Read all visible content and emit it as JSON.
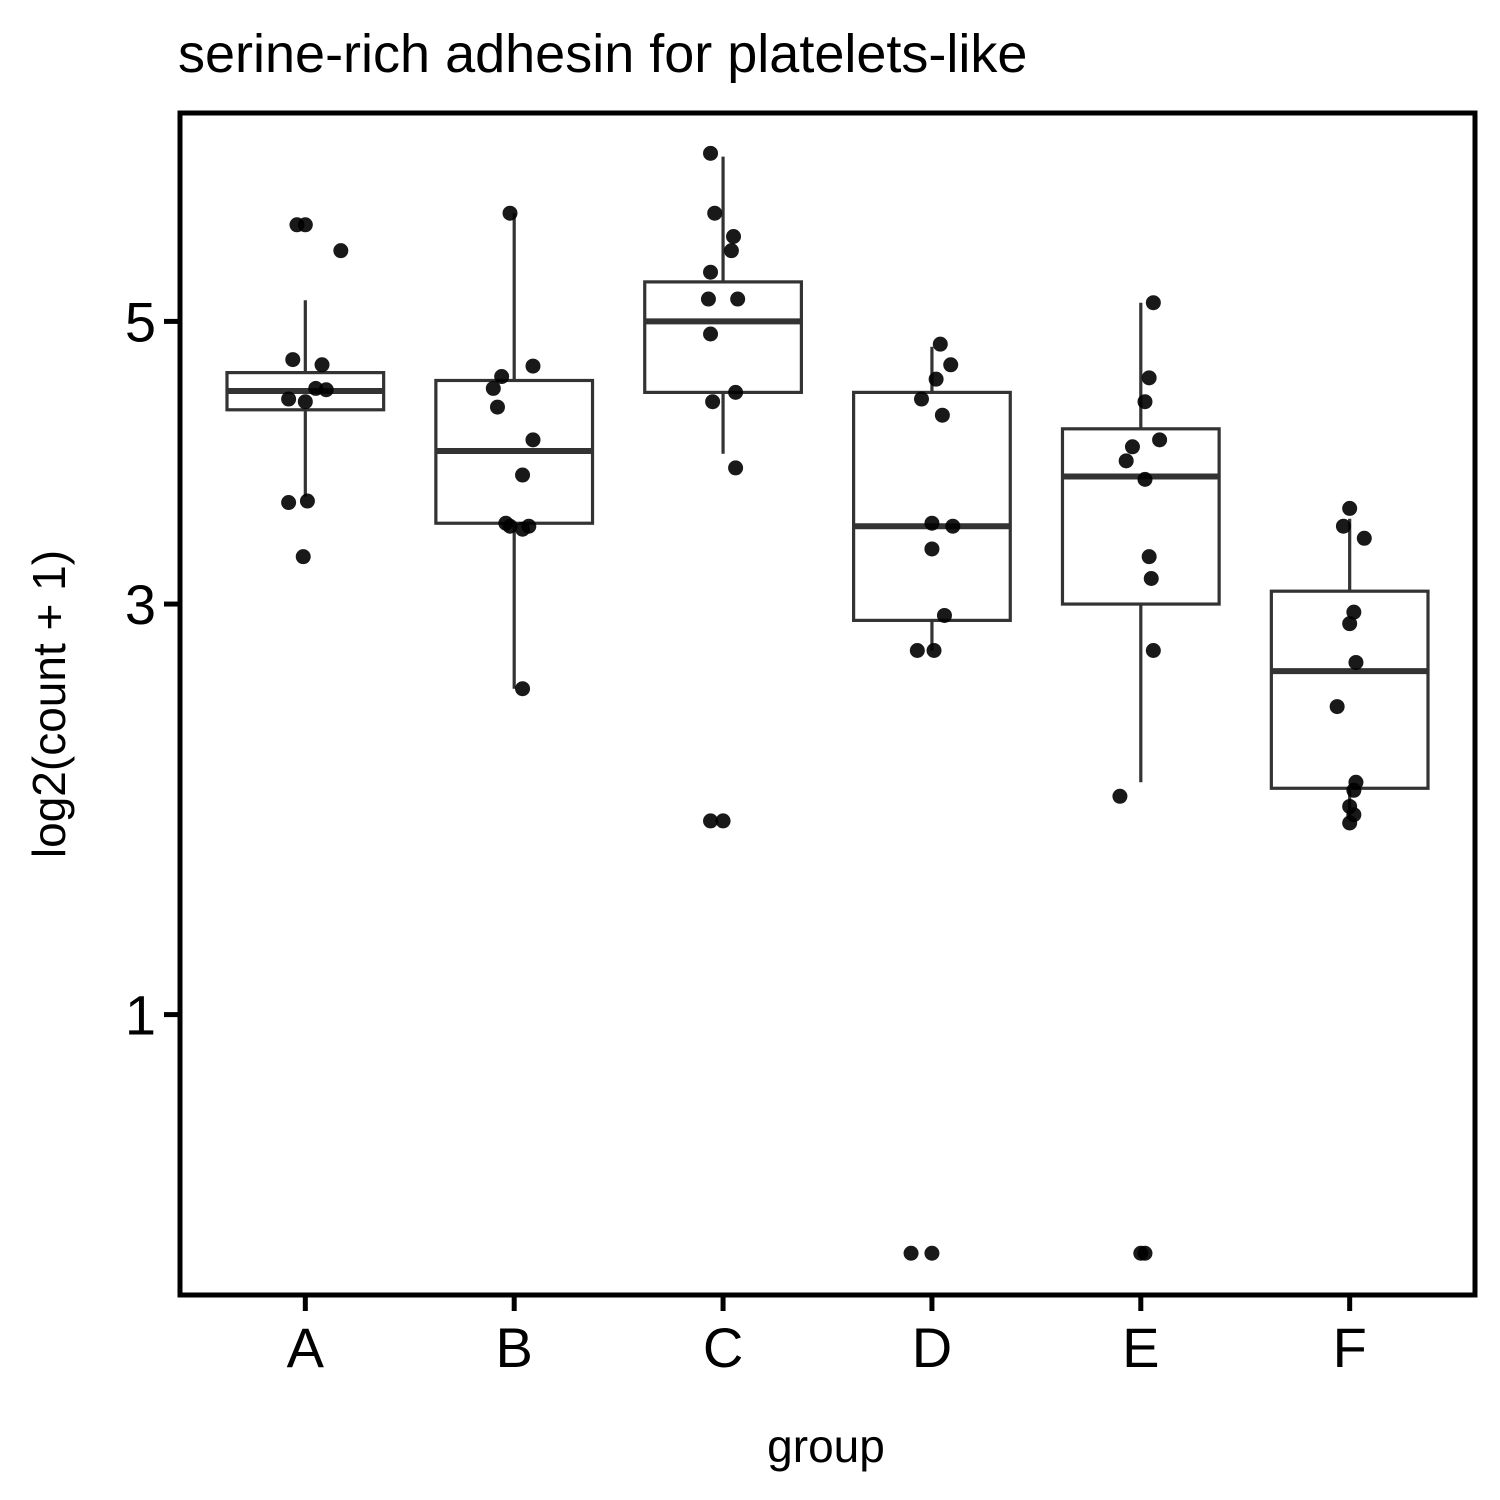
{
  "chart_data": {
    "type": "box",
    "title": "serine-rich adhesin for platelets-like",
    "xlabel": "group",
    "ylabel": "log2(count + 1)",
    "y_scale": "sqrt",
    "y_ticks": [
      1,
      3,
      5
    ],
    "ylim": [
      0.25,
      6.8
    ],
    "grid": false,
    "categories": [
      "A",
      "B",
      "C",
      "D",
      "E",
      "F"
    ],
    "boxes": [
      {
        "name": "A",
        "whisker_low": 3.7,
        "q1": 4.32,
        "median": 4.46,
        "q3": 4.6,
        "whisker_high": 5.17
      },
      {
        "name": "B",
        "whisker_low": 2.5,
        "q1": 3.52,
        "median": 4.02,
        "q3": 4.54,
        "whisker_high": 5.9
      },
      {
        "name": "C",
        "whisker_low": 4.0,
        "q1": 4.45,
        "median": 5.0,
        "q3": 5.32,
        "whisker_high": 6.4
      },
      {
        "name": "D",
        "whisker_low": 2.72,
        "q1": 2.9,
        "median": 3.5,
        "q3": 4.45,
        "whisker_high": 4.8
      },
      {
        "name": "E",
        "whisker_low": 2.0,
        "q1": 3.0,
        "median": 3.84,
        "q3": 4.18,
        "whisker_high": 5.15
      },
      {
        "name": "F",
        "whisker_low": 1.82,
        "q1": 1.97,
        "median": 2.6,
        "q3": 3.08,
        "whisker_high": 3.55
      }
    ],
    "points": [
      {
        "group": "A",
        "jitter": 0.0,
        "value": 5.8
      },
      {
        "group": "A",
        "jitter": -0.04,
        "value": 5.8
      },
      {
        "group": "A",
        "jitter": 0.17,
        "value": 5.58
      },
      {
        "group": "A",
        "jitter": -0.06,
        "value": 4.7
      },
      {
        "group": "A",
        "jitter": 0.08,
        "value": 4.66
      },
      {
        "group": "A",
        "jitter": 0.05,
        "value": 4.48
      },
      {
        "group": "A",
        "jitter": 0.1,
        "value": 4.47
      },
      {
        "group": "A",
        "jitter": -0.08,
        "value": 4.4
      },
      {
        "group": "A",
        "jitter": 0.0,
        "value": 4.38
      },
      {
        "group": "A",
        "jitter": -0.08,
        "value": 3.66
      },
      {
        "group": "A",
        "jitter": 0.01,
        "value": 3.67
      },
      {
        "group": "A",
        "jitter": -0.01,
        "value": 3.3
      },
      {
        "group": "B",
        "jitter": -0.02,
        "value": 5.9
      },
      {
        "group": "B",
        "jitter": 0.09,
        "value": 4.65
      },
      {
        "group": "B",
        "jitter": -0.06,
        "value": 4.57
      },
      {
        "group": "B",
        "jitter": -0.1,
        "value": 4.48
      },
      {
        "group": "B",
        "jitter": -0.08,
        "value": 4.34
      },
      {
        "group": "B",
        "jitter": 0.09,
        "value": 4.1
      },
      {
        "group": "B",
        "jitter": 0.04,
        "value": 3.85
      },
      {
        "group": "B",
        "jitter": -0.04,
        "value": 3.52
      },
      {
        "group": "B",
        "jitter": -0.02,
        "value": 3.5
      },
      {
        "group": "B",
        "jitter": 0.07,
        "value": 3.5
      },
      {
        "group": "B",
        "jitter": 0.04,
        "value": 3.48
      },
      {
        "group": "B",
        "jitter": 0.04,
        "value": 2.5
      },
      {
        "group": "C",
        "jitter": -0.06,
        "value": 6.43
      },
      {
        "group": "C",
        "jitter": -0.04,
        "value": 5.9
      },
      {
        "group": "C",
        "jitter": 0.05,
        "value": 5.7
      },
      {
        "group": "C",
        "jitter": 0.04,
        "value": 5.58
      },
      {
        "group": "C",
        "jitter": -0.06,
        "value": 5.4
      },
      {
        "group": "C",
        "jitter": -0.07,
        "value": 5.18
      },
      {
        "group": "C",
        "jitter": 0.07,
        "value": 5.18
      },
      {
        "group": "C",
        "jitter": -0.06,
        "value": 4.9
      },
      {
        "group": "C",
        "jitter": 0.06,
        "value": 4.45
      },
      {
        "group": "C",
        "jitter": -0.05,
        "value": 4.38
      },
      {
        "group": "C",
        "jitter": 0.06,
        "value": 3.9
      },
      {
        "group": "C",
        "jitter": -0.06,
        "value": 1.81
      },
      {
        "group": "C",
        "jitter": 0.0,
        "value": 1.81
      },
      {
        "group": "D",
        "jitter": 0.04,
        "value": 4.82
      },
      {
        "group": "D",
        "jitter": 0.09,
        "value": 4.66
      },
      {
        "group": "D",
        "jitter": 0.02,
        "value": 4.55
      },
      {
        "group": "D",
        "jitter": -0.05,
        "value": 4.4
      },
      {
        "group": "D",
        "jitter": 0.05,
        "value": 4.28
      },
      {
        "group": "D",
        "jitter": 0.0,
        "value": 3.52
      },
      {
        "group": "D",
        "jitter": 0.1,
        "value": 3.5
      },
      {
        "group": "D",
        "jitter": 0.0,
        "value": 3.35
      },
      {
        "group": "D",
        "jitter": 0.06,
        "value": 2.93
      },
      {
        "group": "D",
        "jitter": -0.07,
        "value": 2.72
      },
      {
        "group": "D",
        "jitter": 0.01,
        "value": 2.72
      },
      {
        "group": "D",
        "jitter": -0.1,
        "value": 0.33
      },
      {
        "group": "D",
        "jitter": 0.0,
        "value": 0.33
      },
      {
        "group": "E",
        "jitter": 0.06,
        "value": 5.15
      },
      {
        "group": "E",
        "jitter": 0.04,
        "value": 4.56
      },
      {
        "group": "E",
        "jitter": 0.02,
        "value": 4.38
      },
      {
        "group": "E",
        "jitter": 0.09,
        "value": 4.1
      },
      {
        "group": "E",
        "jitter": -0.04,
        "value": 4.05
      },
      {
        "group": "E",
        "jitter": -0.07,
        "value": 3.95
      },
      {
        "group": "E",
        "jitter": 0.02,
        "value": 3.82
      },
      {
        "group": "E",
        "jitter": 0.04,
        "value": 3.3
      },
      {
        "group": "E",
        "jitter": 0.05,
        "value": 3.16
      },
      {
        "group": "E",
        "jitter": 0.06,
        "value": 2.72
      },
      {
        "group": "E",
        "jitter": -0.1,
        "value": 1.93
      },
      {
        "group": "E",
        "jitter": 0.0,
        "value": 0.33
      },
      {
        "group": "E",
        "jitter": 0.02,
        "value": 0.33
      },
      {
        "group": "F",
        "jitter": 0.0,
        "value": 3.62
      },
      {
        "group": "F",
        "jitter": -0.03,
        "value": 3.5
      },
      {
        "group": "F",
        "jitter": 0.07,
        "value": 3.42
      },
      {
        "group": "F",
        "jitter": 0.02,
        "value": 2.95
      },
      {
        "group": "F",
        "jitter": 0.0,
        "value": 2.88
      },
      {
        "group": "F",
        "jitter": 0.03,
        "value": 2.65
      },
      {
        "group": "F",
        "jitter": -0.06,
        "value": 2.4
      },
      {
        "group": "F",
        "jitter": 0.03,
        "value": 2.0
      },
      {
        "group": "F",
        "jitter": 0.02,
        "value": 1.96
      },
      {
        "group": "F",
        "jitter": 0.0,
        "value": 1.88
      },
      {
        "group": "F",
        "jitter": 0.02,
        "value": 1.84
      },
      {
        "group": "F",
        "jitter": 0.0,
        "value": 1.8
      }
    ]
  }
}
